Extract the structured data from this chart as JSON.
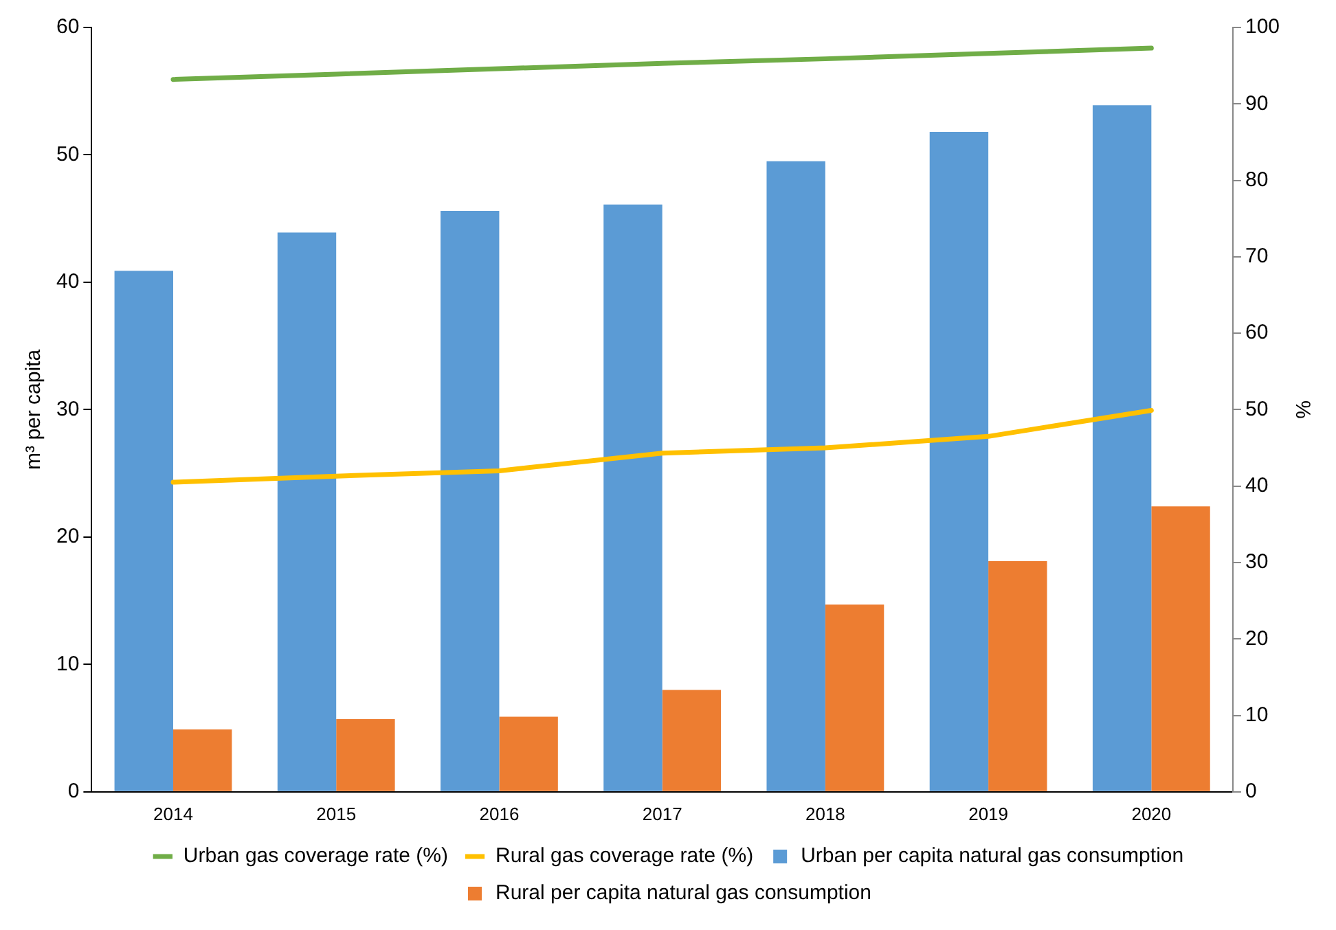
{
  "chart_data": {
    "type": "bar",
    "ylabel": "m³ per capita",
    "y2label": "%",
    "categories": [
      "2014",
      "2015",
      "2016",
      "2017",
      "2018",
      "2019",
      "2020"
    ],
    "series": [
      {
        "name": "Urban per capita natural gas consumption",
        "color": "#5b9bd5",
        "values": [
          40.9,
          43.9,
          45.6,
          46.1,
          49.5,
          51.8,
          53.9
        ]
      },
      {
        "name": "Rural per capita natural gas consumption",
        "color": "#ed7d31",
        "values": [
          4.9,
          5.7,
          5.9,
          8.0,
          14.7,
          18.1,
          22.4
        ]
      },
      {
        "name": "Urban gas coverage rate (%)",
        "type": "line",
        "axis": "y2",
        "color": "#70ad47",
        "values": [
          93.2,
          93.9,
          94.6,
          95.3,
          95.9,
          96.6,
          97.3
        ]
      },
      {
        "name": "Rural gas coverage rate (%)",
        "type": "line",
        "axis": "y2",
        "color": "#ffc000",
        "values": [
          40.5,
          41.3,
          42.0,
          44.3,
          45.0,
          46.5,
          49.9
        ]
      }
    ],
    "ylim": [
      0,
      60
    ],
    "yticks": [
      0,
      10,
      20,
      30,
      40,
      50,
      60
    ],
    "y2lim": [
      0,
      100
    ],
    "y2ticks": [
      0,
      10,
      20,
      30,
      40,
      50,
      60,
      70,
      80,
      90,
      100
    ],
    "grid": false,
    "legend": "bottom",
    "marker": "none",
    "line_style": "solid"
  }
}
